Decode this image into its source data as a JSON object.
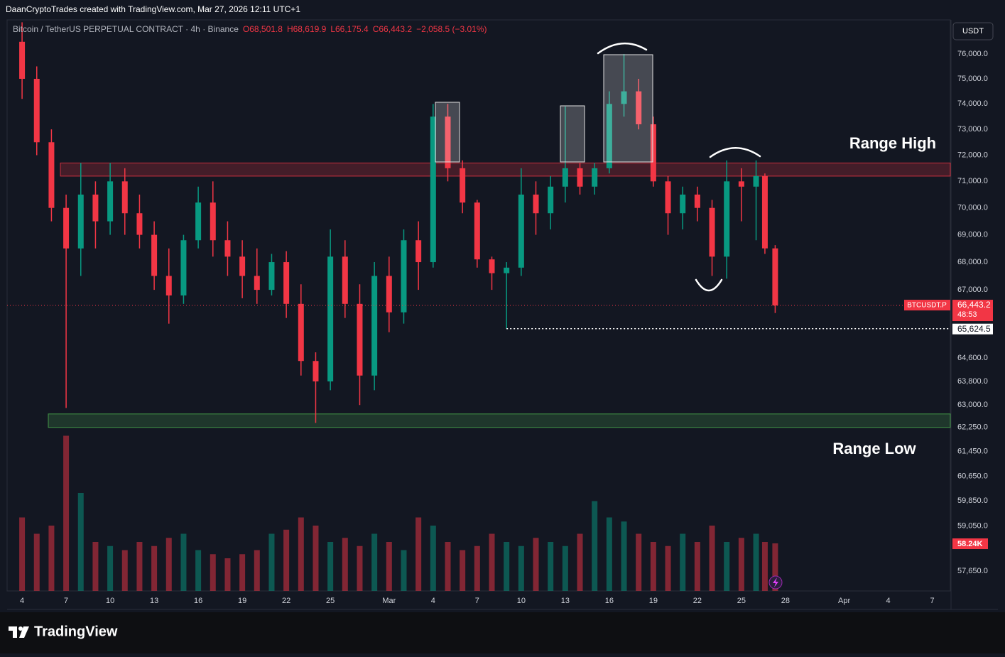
{
  "header": {
    "attribution": "DaanCryptoTrades created with TradingView.com, Mar 27, 2026 12:11 UTC+1"
  },
  "footer": {
    "brand": "TradingView"
  },
  "chart_data": {
    "type": "candlestick",
    "symbol": "Bitcoin / TetherUS PERPETUAL CONTRACT · 4h · Binance",
    "legend": {
      "open": "O68,501.8",
      "high": "H68,619.9",
      "low": "L66,175.4",
      "close": "C66,443.2",
      "change": "−2,058.5 (−3.01%)"
    },
    "currency": "USDT",
    "up_color": "#089981",
    "down_color": "#f23645",
    "log_scale": true,
    "grid": false,
    "x": [
      4,
      5,
      6,
      7,
      8,
      9,
      10,
      11,
      12,
      13,
      14,
      15,
      16,
      17,
      18,
      19,
      20,
      21,
      22,
      23,
      24,
      25,
      26,
      27,
      28,
      29,
      30,
      31,
      32,
      33,
      34,
      35,
      36,
      37,
      38,
      39,
      40,
      41,
      42,
      43,
      44,
      45,
      46,
      47,
      48,
      49,
      50,
      51,
      52,
      53,
      54,
      54.6,
      55.3
    ],
    "open": [
      76500,
      75000,
      72500,
      70000,
      68500,
      70500,
      69500,
      71000,
      69800,
      69000,
      67500,
      66800,
      68800,
      70200,
      68800,
      68200,
      67500,
      67000,
      68000,
      66500,
      64500,
      63800,
      68200,
      66500,
      64000,
      67500,
      66200,
      68800,
      68000,
      73500,
      71500,
      70200,
      68100,
      67600,
      67800,
      70500,
      69800,
      70800,
      71500,
      70800,
      71500,
      74000,
      74500,
      73200,
      71000,
      69800,
      70500,
      70000,
      68200,
      71000,
      70800,
      71200,
      68501.8
    ],
    "high": [
      77300,
      75500,
      73000,
      70500,
      71700,
      71000,
      71700,
      71500,
      70500,
      69500,
      68500,
      69000,
      70800,
      71000,
      69500,
      68800,
      68500,
      68300,
      68400,
      67200,
      64800,
      69200,
      68800,
      67200,
      68000,
      68200,
      69200,
      69500,
      74000,
      74000,
      71800,
      70300,
      68200,
      68000,
      71500,
      71000,
      71200,
      73900,
      71700,
      71700,
      74500,
      76000,
      75000,
      73500,
      71200,
      70800,
      70800,
      70300,
      71800,
      71500,
      71800,
      71300,
      68619.9
    ],
    "low": [
      74200,
      72000,
      69500,
      62900,
      67500,
      68500,
      69000,
      69000,
      68500,
      67000,
      65800,
      66500,
      68500,
      68200,
      67500,
      66700,
      66500,
      66800,
      66000,
      64000,
      62400,
      63500,
      66000,
      63000,
      63500,
      65500,
      65800,
      67000,
      67800,
      71000,
      69800,
      67800,
      67000,
      65624.5,
      67500,
      69000,
      69200,
      70200,
      70500,
      70500,
      71300,
      73500,
      73000,
      70800,
      69000,
      69200,
      69500,
      67500,
      67400,
      69500,
      68800,
      68300,
      66175.4
    ],
    "close": [
      75000,
      72500,
      70000,
      68500,
      70500,
      69500,
      71000,
      69800,
      69000,
      67500,
      66800,
      68800,
      70200,
      68800,
      68200,
      67500,
      67000,
      68000,
      66500,
      64500,
      63800,
      68200,
      66500,
      64000,
      67500,
      66200,
      68800,
      68000,
      73500,
      71500,
      70200,
      68100,
      67600,
      67800,
      70500,
      69800,
      70800,
      71500,
      70800,
      71500,
      74000,
      74500,
      73200,
      71000,
      69800,
      70500,
      70000,
      68200,
      71000,
      70800,
      71200,
      68501.8,
      66443.2
    ],
    "volume": {
      "values": [
        90,
        70,
        80,
        190,
        120,
        60,
        55,
        50,
        60,
        55,
        65,
        70,
        50,
        45,
        40,
        45,
        50,
        70,
        75,
        90,
        80,
        60,
        65,
        55,
        70,
        60,
        50,
        90,
        80,
        60,
        50,
        55,
        70,
        60,
        55,
        65,
        60,
        55,
        70,
        110,
        90,
        85,
        70,
        60,
        55,
        70,
        60,
        80,
        60,
        65,
        70,
        60,
        58.24
      ],
      "last_label": "58.24K",
      "ylim": [
        0,
        200
      ]
    },
    "xlim": [
      2.98,
      67.23
    ],
    "xticks": [
      4,
      7,
      10,
      13,
      16,
      19,
      22,
      25,
      {
        "value": 29,
        "label": "Mar"
      },
      {
        "value": 32,
        "label": "4"
      },
      {
        "value": 35,
        "label": "7"
      },
      {
        "value": 38,
        "label": "10"
      },
      {
        "value": 41,
        "label": "13"
      },
      {
        "value": 44,
        "label": "16"
      },
      {
        "value": 47,
        "label": "19"
      },
      {
        "value": 50,
        "label": "22"
      },
      {
        "value": 53,
        "label": "25"
      },
      {
        "value": 56,
        "label": "28"
      },
      {
        "value": 60,
        "label": "Apr"
      },
      {
        "value": 63,
        "label": "4"
      },
      {
        "value": 66,
        "label": "7"
      }
    ],
    "ylim": [
      57040,
      77400
    ],
    "yticks": [
      {
        "value": 76000,
        "label": "76,000.0"
      },
      {
        "value": 75000,
        "label": "75,000.0"
      },
      {
        "value": 74000,
        "label": "74,000.0"
      },
      {
        "value": 73000,
        "label": "73,000.0"
      },
      {
        "value": 72000,
        "label": "72,000.0"
      },
      {
        "value": 71000,
        "label": "71,000.0"
      },
      {
        "value": 70000,
        "label": "70,000.0"
      },
      {
        "value": 69000,
        "label": "69,000.0"
      },
      {
        "value": 68000,
        "label": "68,000.0"
      },
      {
        "value": 67000,
        "label": "67,000.0"
      },
      {
        "value": 64600,
        "label": "64,600.0"
      },
      {
        "value": 63800,
        "label": "63,800.0"
      },
      {
        "value": 63000,
        "label": "63,000.0"
      },
      {
        "value": 62250,
        "label": "62,250.0"
      },
      {
        "value": 61450,
        "label": "61,450.0"
      },
      {
        "value": 60650,
        "label": "60,650.0"
      },
      {
        "value": 59850,
        "label": "59,850.0"
      },
      {
        "value": 59050,
        "label": "59,050.0"
      },
      {
        "value": 57650,
        "label": "57,650.0"
      }
    ],
    "last_price": {
      "symbol": "BTCUSDT.P",
      "value": 66443.2,
      "label": "66,443.2",
      "countdown": "48:53"
    },
    "level": {
      "value": 65624.5,
      "label": "65,624.5"
    },
    "zones": [
      {
        "label": "Range High",
        "low": 71200,
        "high": 71700,
        "color": "#f23645"
      },
      {
        "label": "Range Low",
        "low": 62250,
        "high": 62700,
        "color": "#4caf50"
      }
    ]
  }
}
